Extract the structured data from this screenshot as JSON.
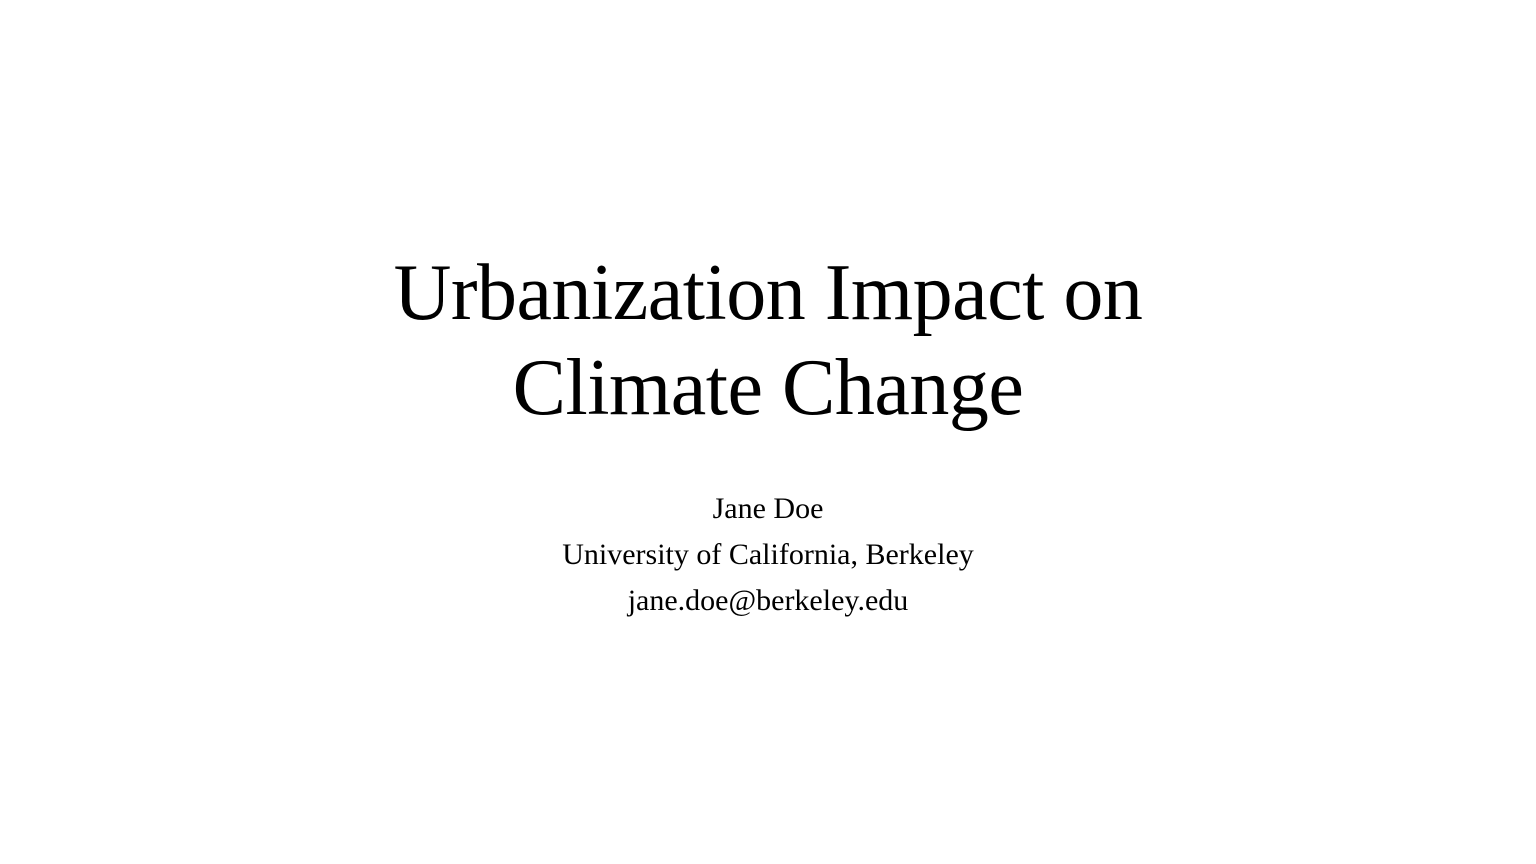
{
  "slide": {
    "title_line_1": "Urbanization Impact on",
    "title_line_2": "Climate Change",
    "author_name": "Jane Doe",
    "affiliation": "University of California, Berkeley",
    "email": "jane.doe@berkeley.edu"
  }
}
